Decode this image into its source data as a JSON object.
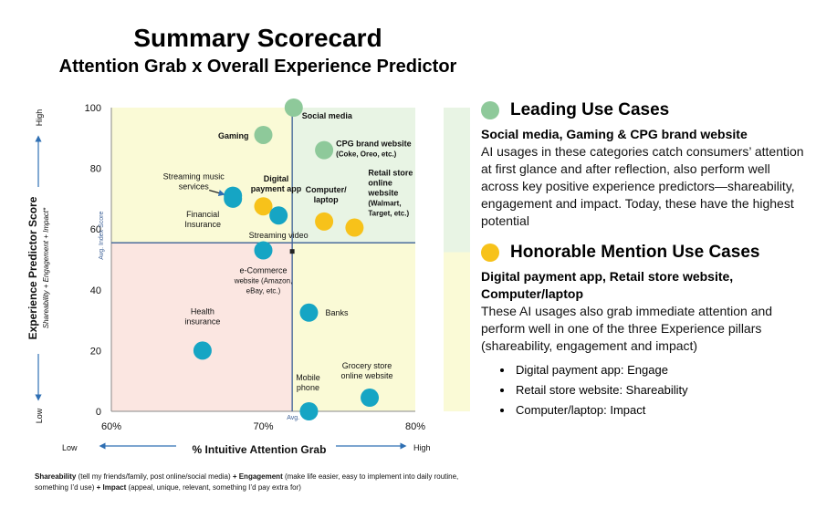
{
  "title": "Summary Scorecard",
  "subtitle": "Attention Grab x Overall Experience Predictor",
  "colors": {
    "leading": "#8ec99a",
    "honorable": "#f7c21a",
    "other": "#16a5c4",
    "green_zone": "#e8f4e4",
    "yellow_zone": "#fafad6",
    "pink_zone": "#fbe6e1"
  },
  "chart_data": {
    "type": "scatter",
    "title": "",
    "xlabel": "% Intuitive Attention Grab",
    "ylabel": "Experience Predictor Score",
    "ylabel_sub": "Shareability + Engagement + Impact*",
    "xlim": [
      60,
      80
    ],
    "ylim": [
      0,
      100
    ],
    "x_ticks": [
      "60%",
      "70%",
      "80%"
    ],
    "y_ticks": [
      "0",
      "20",
      "40",
      "60",
      "80",
      "100"
    ],
    "avg_x": 71.9,
    "avg_y": 55.5,
    "avg_x_label": "Avg.",
    "avg_y_label": "Avg. Index Score",
    "x_low": "Low",
    "x_high": "High",
    "y_low": "Low",
    "y_high": "High",
    "points": [
      {
        "name": "Social media",
        "x": 72.0,
        "y": 100,
        "group": "leading"
      },
      {
        "name": "Gaming",
        "x": 70.0,
        "y": 91,
        "group": "leading"
      },
      {
        "name": "CPG brand website (Coke, Oreo, etc.)",
        "x": 74.0,
        "y": 86,
        "group": "leading"
      },
      {
        "name": "Streaming music services",
        "x": 68.0,
        "y": 71,
        "group": "other"
      },
      {
        "name": "Financial Insurance",
        "x": 68.0,
        "y": 70,
        "group": "other"
      },
      {
        "name": "Digital payment app",
        "x": 70.0,
        "y": 67.5,
        "group": "honorable"
      },
      {
        "name": "Streaming video",
        "x": 71.0,
        "y": 64.5,
        "group": "other"
      },
      {
        "name": "Computer/ laptop",
        "x": 74.0,
        "y": 62.5,
        "group": "honorable"
      },
      {
        "name": "Retail store online website (Walmart, Target, etc.)",
        "x": 76.0,
        "y": 60.5,
        "group": "honorable"
      },
      {
        "name": "e-Commerce website (Amazon, eBay, etc.)",
        "x": 70.0,
        "y": 53,
        "group": "other"
      },
      {
        "name": "Banks",
        "x": 73.0,
        "y": 32.5,
        "group": "other"
      },
      {
        "name": "Health insurance",
        "x": 66.0,
        "y": 20,
        "group": "other"
      },
      {
        "name": "Grocery store online website",
        "x": 77.0,
        "y": 4.5,
        "group": "other"
      },
      {
        "name": "Mobile phone",
        "x": 73.0,
        "y": 0,
        "group": "other"
      }
    ],
    "zones": {
      "top_left": "yellow",
      "top_right": "green",
      "bottom_left": "pink",
      "bottom_right": "yellow"
    },
    "side_bar": {
      "upper": "green",
      "lower": "yellow",
      "split_y": 56
    }
  },
  "legend": {
    "leading": {
      "heading": "Leading Use Cases",
      "sub": "Social media, Gaming & CPG brand website",
      "body": "AI usages in these categories catch consumers’ attention at first glance and after reflection, also perform well across key positive experience predictors—shareability, engagement and impact. Today, these have the highest potential"
    },
    "honorable": {
      "heading": "Honorable Mention Use Cases",
      "sub": "Digital payment app, Retail store website, Computer/laptop",
      "body": "These AI usages also grab immediate attention and perform well in one of the three Experience pillars (shareability, engagement and impact)",
      "bullets": [
        "Digital payment app: Engage",
        "Retail store website: Shareability",
        "Computer/laptop: Impact"
      ]
    }
  },
  "footnote": {
    "s_term": "Shareability",
    "s_desc": " (tell my friends/family, post online/social media) ",
    "e_term": "+ Engagement",
    "e_desc": " (make life easier, easy to implement into daily routine, something I’d use) ",
    "i_term": "+ Impact",
    "i_desc": " (appeal, unique, relevant, something I’d pay extra for)"
  }
}
